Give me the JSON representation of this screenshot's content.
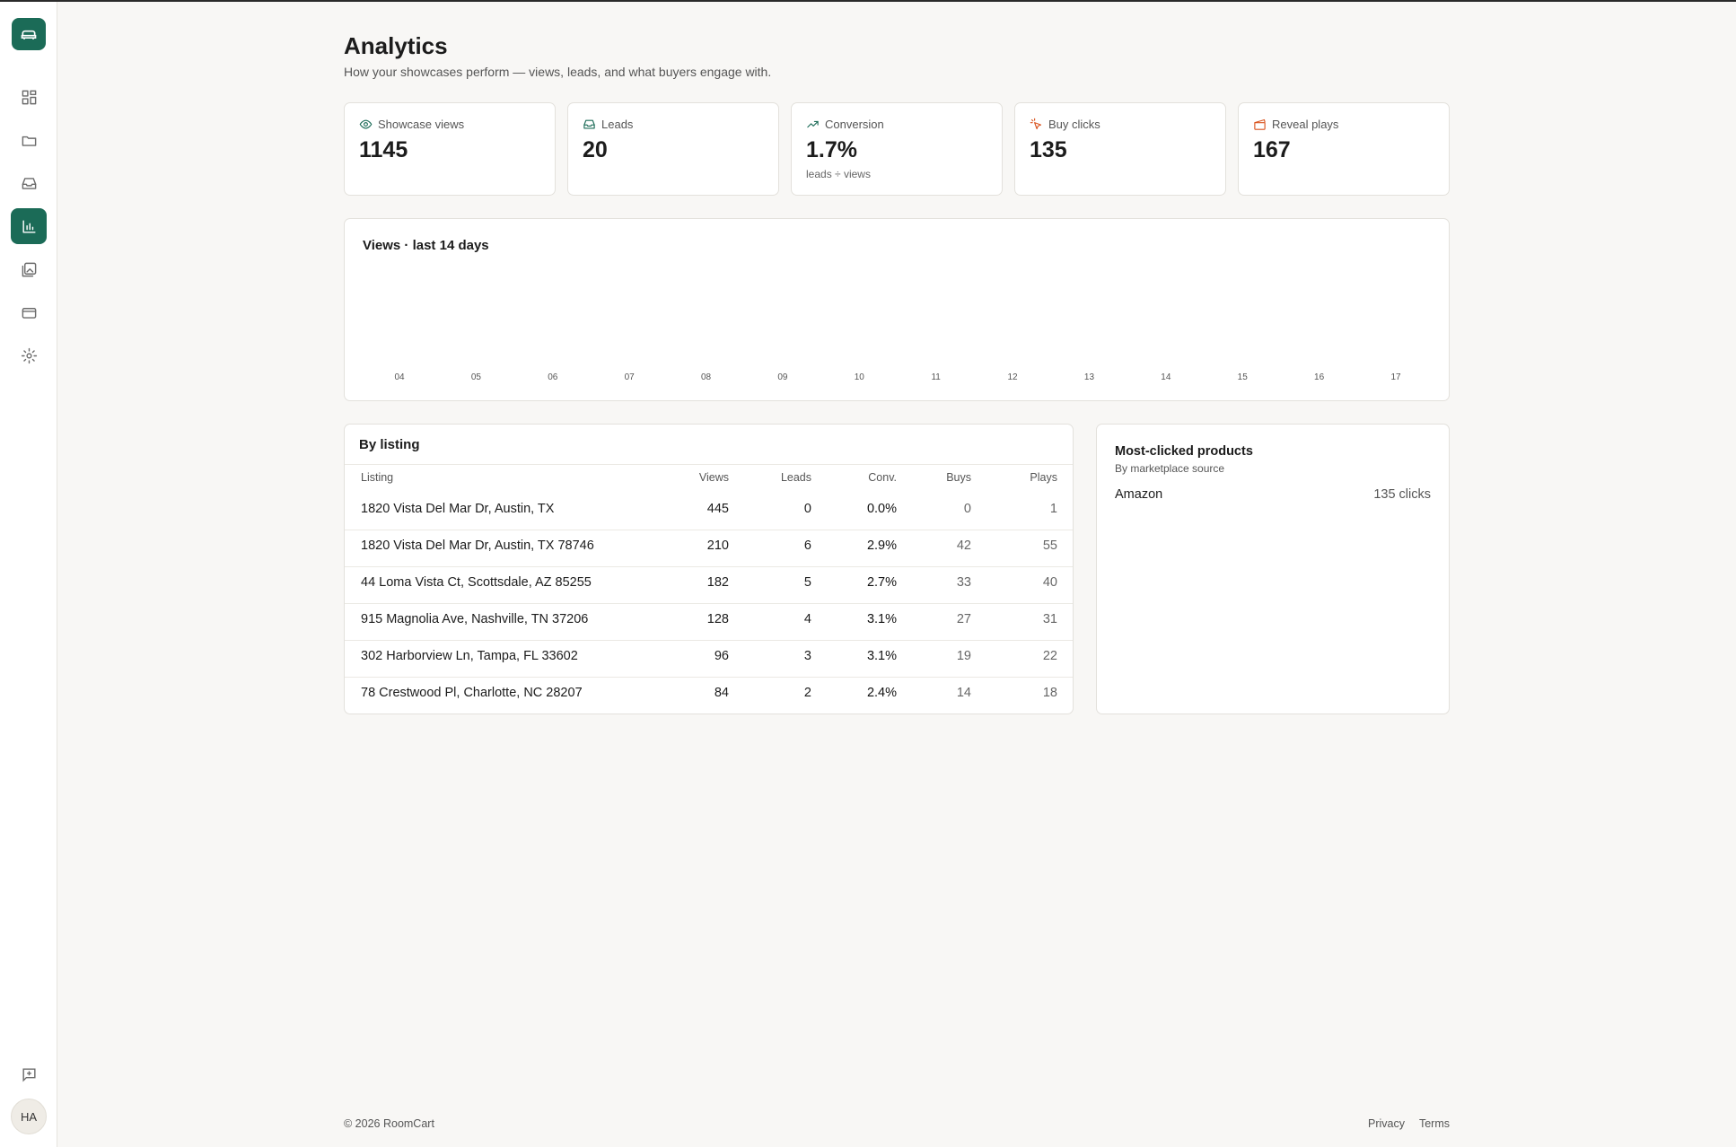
{
  "sidebar": {
    "avatar": "HA"
  },
  "header": {
    "title": "Analytics",
    "subtitle": "How your showcases perform — views, leads, and what buyers engage with."
  },
  "stats": [
    {
      "label": "Showcase views",
      "value": "1145"
    },
    {
      "label": "Leads",
      "value": "20"
    },
    {
      "label": "Conversion",
      "value": "1.7%",
      "note": "leads ÷ views"
    },
    {
      "label": "Buy clicks",
      "value": "135"
    },
    {
      "label": "Reveal plays",
      "value": "167"
    }
  ],
  "chart": {
    "title": "Views · last 14 days",
    "x_labels": [
      "04",
      "05",
      "06",
      "07",
      "08",
      "09",
      "10",
      "11",
      "12",
      "13",
      "14",
      "15",
      "16",
      "17"
    ]
  },
  "table": {
    "title": "By listing",
    "columns": [
      "Listing",
      "Views",
      "Leads",
      "Conv.",
      "Buys",
      "Plays"
    ],
    "rows": [
      [
        "1820 Vista Del Mar Dr, Austin, TX",
        "445",
        "0",
        "0.0%",
        "0",
        "1"
      ],
      [
        "1820 Vista Del Mar Dr, Austin, TX 78746",
        "210",
        "6",
        "2.9%",
        "42",
        "55"
      ],
      [
        "44 Loma Vista Ct, Scottsdale, AZ 85255",
        "182",
        "5",
        "2.7%",
        "33",
        "40"
      ],
      [
        "915 Magnolia Ave, Nashville, TN 37206",
        "128",
        "4",
        "3.1%",
        "27",
        "31"
      ],
      [
        "302 Harborview Ln, Tampa, FL 33602",
        "96",
        "3",
        "3.1%",
        "19",
        "22"
      ],
      [
        "78 Crestwood Pl, Charlotte, NC 28207",
        "84",
        "2",
        "2.4%",
        "14",
        "18"
      ]
    ]
  },
  "products": {
    "title": "Most-clicked products",
    "subtitle": "By marketplace source",
    "items": [
      {
        "name": "Amazon",
        "clicks": "135 clicks"
      }
    ]
  },
  "footer": {
    "copyright": "© 2026 RoomCart",
    "links": [
      "Privacy",
      "Terms"
    ]
  }
}
